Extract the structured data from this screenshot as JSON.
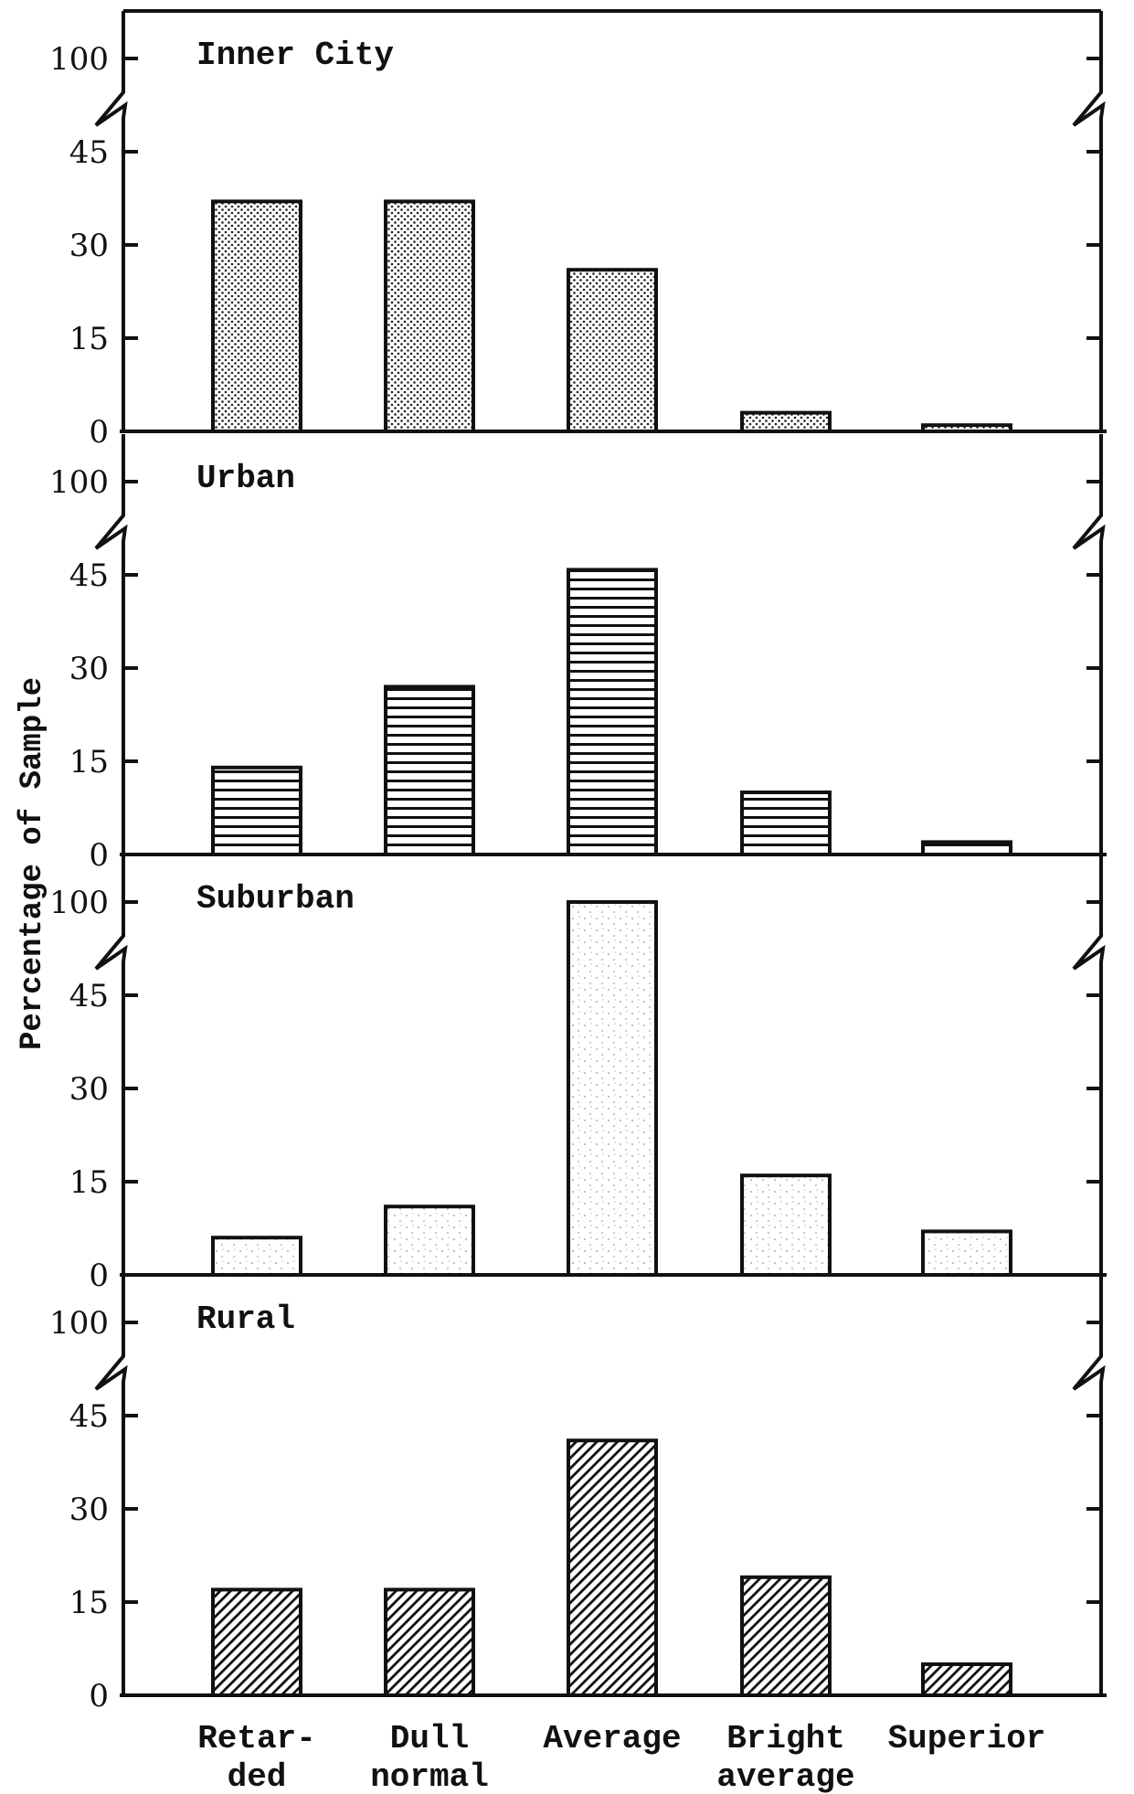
{
  "chart_data": {
    "type": "bar",
    "ylabel": "Percentage of Sample",
    "categories": [
      [
        "Retar-",
        "ded"
      ],
      [
        "Dull",
        "normal"
      ],
      [
        "Average"
      ],
      [
        "Bright",
        "average"
      ],
      [
        "Superior"
      ]
    ],
    "y_ticks": [
      0,
      15,
      30,
      45,
      100
    ],
    "axis_break": "between 45 and 100",
    "grid": false,
    "panels": [
      {
        "title": "Inner City",
        "pattern": "dots",
        "values": [
          37,
          37,
          26,
          3,
          1
        ]
      },
      {
        "title": "Urban",
        "pattern": "horizontal-lines",
        "values": [
          14,
          27,
          48,
          10,
          2
        ]
      },
      {
        "title": "Suburban",
        "pattern": "fine-stipple",
        "values": [
          6,
          11,
          100,
          16,
          7
        ]
      },
      {
        "title": "Rural",
        "pattern": "diagonal-hatch",
        "values": [
          17,
          17,
          41,
          19,
          5
        ]
      }
    ]
  }
}
